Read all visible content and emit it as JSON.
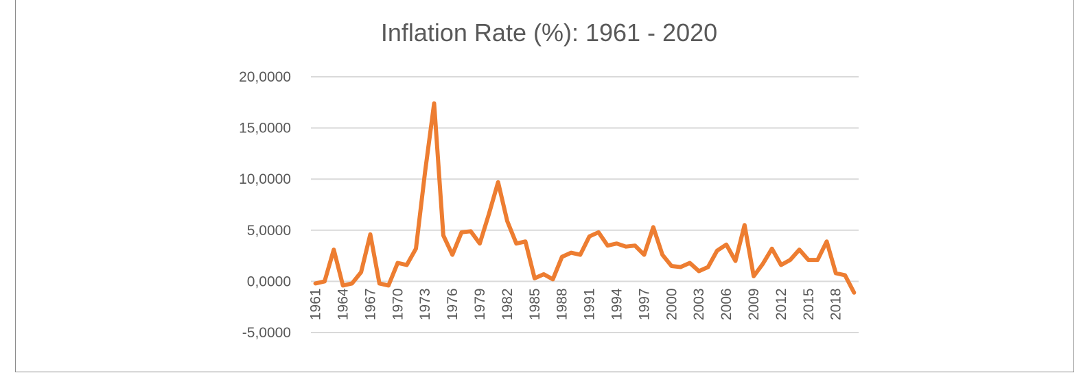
{
  "chart_data": {
    "type": "line",
    "title": "Inflation Rate (%): 1961 - 2020",
    "xlabel": "",
    "ylabel": "",
    "ylim": [
      -5,
      20
    ],
    "yticks": [
      -5,
      0,
      5,
      10,
      15,
      20
    ],
    "ytick_labels": [
      "-5,0000",
      "0,0000",
      "5,0000",
      "10,0000",
      "15,0000",
      "20,0000"
    ],
    "xtick_years": [
      1961,
      1964,
      1967,
      1970,
      1973,
      1976,
      1979,
      1982,
      1985,
      1988,
      1991,
      1994,
      1997,
      2000,
      2003,
      2006,
      2009,
      2012,
      2015,
      2018
    ],
    "xtick_labels": [
      "1961",
      "1964",
      "1967",
      "1970",
      "1973",
      "1976",
      "1979",
      "1982",
      "1985",
      "1988",
      "1991",
      "1994",
      "1997",
      "2000",
      "2003",
      "2006",
      "2009",
      "2012",
      "2015",
      "2018"
    ],
    "grid": true,
    "legend": "none",
    "color": "#ed7d31",
    "x": [
      1961,
      1962,
      1963,
      1964,
      1965,
      1966,
      1967,
      1968,
      1969,
      1970,
      1971,
      1972,
      1973,
      1974,
      1975,
      1976,
      1977,
      1978,
      1979,
      1980,
      1981,
      1982,
      1983,
      1984,
      1985,
      1986,
      1987,
      1988,
      1989,
      1990,
      1991,
      1992,
      1993,
      1994,
      1995,
      1996,
      1997,
      1998,
      1999,
      2000,
      2001,
      2002,
      2003,
      2004,
      2005,
      2006,
      2007,
      2008,
      2009,
      2010,
      2011,
      2012,
      2013,
      2014,
      2015,
      2016,
      2017,
      2018,
      2019,
      2020
    ],
    "series": [
      {
        "values": [
          -0.2,
          0.0,
          3.1,
          -0.4,
          -0.2,
          0.9,
          4.6,
          -0.2,
          -0.4,
          1.8,
          1.6,
          3.2,
          10.7,
          17.4,
          4.5,
          2.6,
          4.8,
          4.9,
          3.7,
          6.6,
          9.7,
          5.9,
          3.7,
          3.9,
          0.3,
          0.7,
          0.2,
          2.4,
          2.8,
          2.6,
          4.4,
          4.8,
          3.5,
          3.7,
          3.4,
          3.5,
          2.6,
          5.3,
          2.6,
          1.5,
          1.4,
          1.8,
          1.0,
          1.4,
          3.0,
          3.6,
          2.0,
          5.5,
          0.5,
          1.7,
          3.2,
          1.6,
          2.1,
          3.1,
          2.1,
          2.1,
          3.9,
          0.8,
          0.6,
          -1.1
        ]
      }
    ]
  }
}
